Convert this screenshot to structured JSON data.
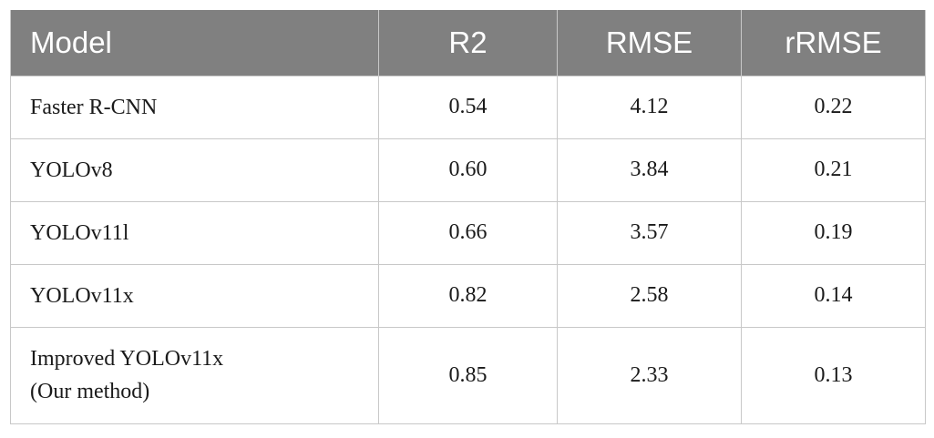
{
  "table": {
    "headers": {
      "model": "Model",
      "r2": "R2",
      "rmse": "RMSE",
      "rrmse": "rRMSE"
    },
    "rows": [
      {
        "model": [
          "Faster R-CNN"
        ],
        "r2": "0.54",
        "rmse": "4.12",
        "rrmse": "0.22"
      },
      {
        "model": [
          "YOLOv8"
        ],
        "r2": "0.60",
        "rmse": "3.84",
        "rrmse": "0.21"
      },
      {
        "model": [
          "YOLOv11l"
        ],
        "r2": "0.66",
        "rmse": "3.57",
        "rrmse": "0.19"
      },
      {
        "model": [
          "YOLOv11x"
        ],
        "r2": "0.82",
        "rmse": "2.58",
        "rrmse": "0.14"
      },
      {
        "model": [
          "Improved YOLOv11x",
          "(Our method)"
        ],
        "r2": "0.85",
        "rmse": "2.33",
        "rrmse": "0.13"
      }
    ]
  },
  "colors": {
    "header_background": "#808080",
    "header_text": "#ffffff",
    "grid_line": "#c8c8c8"
  }
}
